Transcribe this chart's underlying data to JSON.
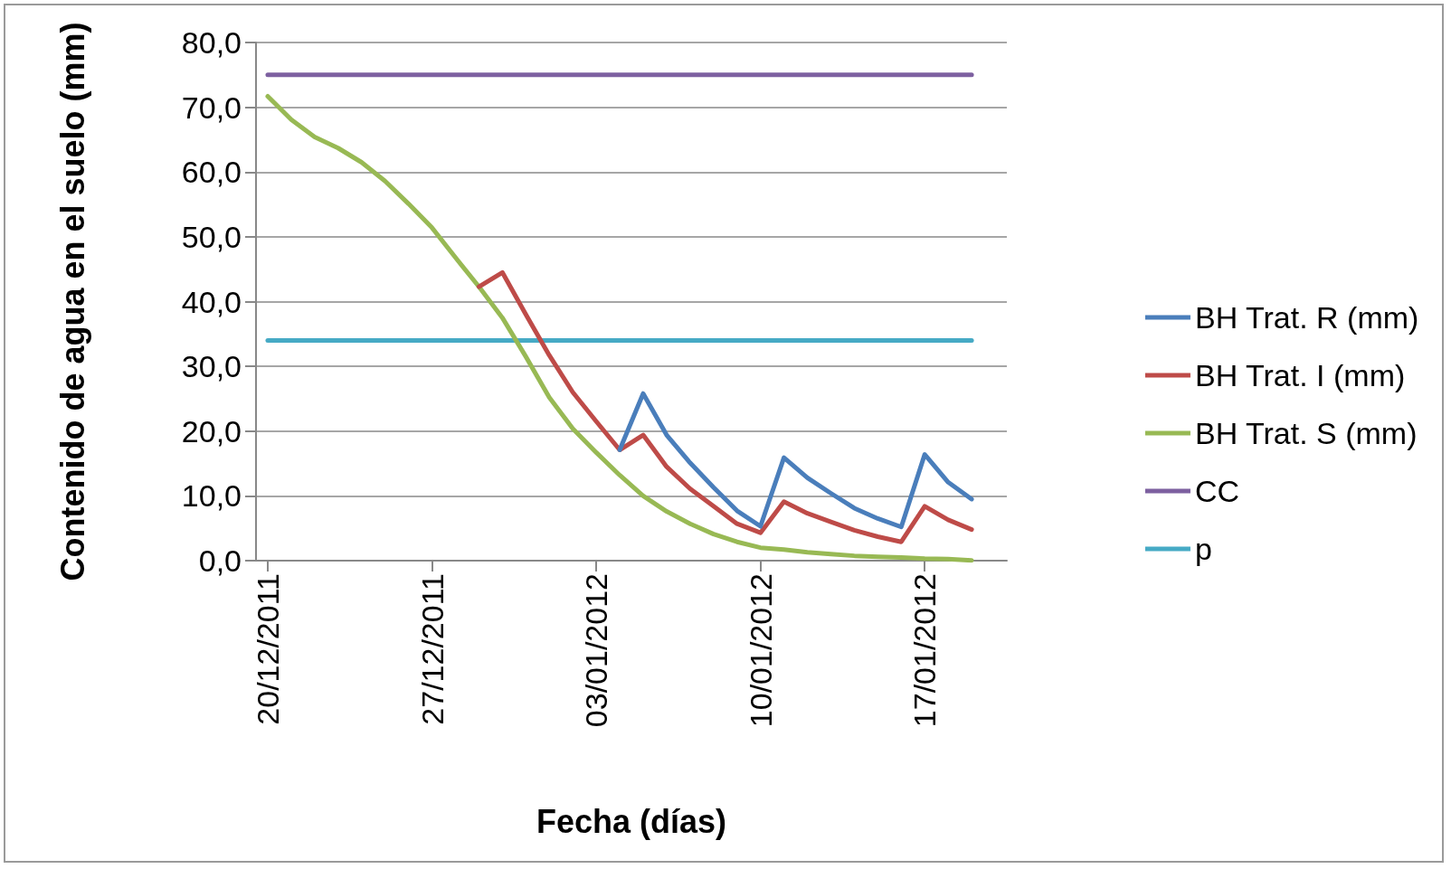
{
  "chart_data": {
    "type": "line",
    "xlabel": "Fecha (días)",
    "ylabel": "Contenido de agua en el suelo (mm)",
    "x": [
      "2011-12-20",
      "2011-12-21",
      "2011-12-22",
      "2011-12-23",
      "2011-12-24",
      "2011-12-25",
      "2011-12-26",
      "2011-12-27",
      "2011-12-28",
      "2011-12-29",
      "2011-12-30",
      "2011-12-31",
      "2012-01-01",
      "2012-01-02",
      "2012-01-03",
      "2012-01-04",
      "2012-01-05",
      "2012-01-06",
      "2012-01-07",
      "2012-01-08",
      "2012-01-09",
      "2012-01-10",
      "2012-01-11",
      "2012-01-12",
      "2012-01-13",
      "2012-01-14",
      "2012-01-15",
      "2012-01-16",
      "2012-01-17",
      "2012-01-18",
      "2012-01-19"
    ],
    "xlim": [
      "2011-12-19T12:00",
      "2012-01-20T12:00"
    ],
    "xticks": [
      {
        "value": "2011-12-20",
        "label": "20/12/2011"
      },
      {
        "value": "2011-12-27",
        "label": "27/12/2011"
      },
      {
        "value": "2012-01-03",
        "label": "03/01/2012"
      },
      {
        "value": "2012-01-10",
        "label": "10/01/2012"
      },
      {
        "value": "2012-01-17",
        "label": "17/01/2012"
      }
    ],
    "ylim": [
      0,
      80
    ],
    "yticks": [
      {
        "value": 0,
        "label": "0,0"
      },
      {
        "value": 10,
        "label": "10,0"
      },
      {
        "value": 20,
        "label": "20,0"
      },
      {
        "value": 30,
        "label": "30,0"
      },
      {
        "value": 40,
        "label": "40,0"
      },
      {
        "value": 50,
        "label": "50,0"
      },
      {
        "value": 60,
        "label": "60,0"
      },
      {
        "value": 70,
        "label": "70,0"
      },
      {
        "value": 80,
        "label": "80,0"
      }
    ],
    "grid": "y",
    "legend": "right",
    "marker": "none",
    "line_style": "solid",
    "series": [
      {
        "name": "BH Trat. R (mm)",
        "color": "#4a7ebb",
        "values": [
          null,
          null,
          null,
          null,
          null,
          null,
          null,
          null,
          null,
          null,
          null,
          null,
          null,
          null,
          null,
          17.1,
          25.8,
          19.4,
          15.1,
          11.3,
          7.7,
          5.3,
          15.9,
          12.8,
          10.4,
          8.1,
          6.5,
          5.2,
          16.4,
          12.1,
          9.5
        ]
      },
      {
        "name": "BH Trat. I (mm)",
        "color": "#be4b48",
        "values": [
          null,
          null,
          null,
          null,
          null,
          null,
          null,
          null,
          null,
          42.3,
          44.5,
          38.0,
          31.7,
          26.0,
          21.5,
          17.1,
          19.4,
          14.5,
          11.1,
          8.4,
          5.7,
          4.3,
          9.1,
          7.3,
          6.0,
          4.7,
          3.7,
          2.9,
          8.4,
          6.3,
          4.8
        ]
      },
      {
        "name": "BH Trat. S (mm)",
        "color": "#98b954",
        "values": [
          71.7,
          68.1,
          65.4,
          63.7,
          61.5,
          58.6,
          55.1,
          51.4,
          46.8,
          42.3,
          37.5,
          31.5,
          25.2,
          20.4,
          16.7,
          13.2,
          10.0,
          7.6,
          5.7,
          4.1,
          2.9,
          2.0,
          1.7,
          1.3,
          1.0,
          0.75,
          0.6,
          0.5,
          0.3,
          0.25,
          0.05
        ]
      },
      {
        "name": "CC",
        "color": "#7d60a0",
        "values": [
          75,
          75,
          75,
          75,
          75,
          75,
          75,
          75,
          75,
          75,
          75,
          75,
          75,
          75,
          75,
          75,
          75,
          75,
          75,
          75,
          75,
          75,
          75,
          75,
          75,
          75,
          75,
          75,
          75,
          75,
          75
        ]
      },
      {
        "name": "p",
        "color": "#46aac5",
        "values": [
          34,
          34,
          34,
          34,
          34,
          34,
          34,
          34,
          34,
          34,
          34,
          34,
          34,
          34,
          34,
          34,
          34,
          34,
          34,
          34,
          34,
          34,
          34,
          34,
          34,
          34,
          34,
          34,
          34,
          34,
          34
        ]
      }
    ]
  }
}
